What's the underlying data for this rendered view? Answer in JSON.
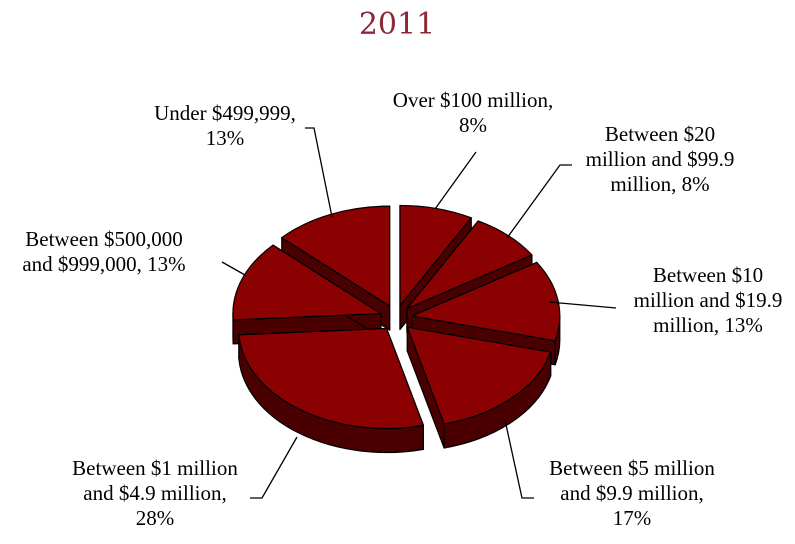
{
  "chart_data": {
    "type": "pie",
    "title": "2011",
    "style": "3d-exploded",
    "colors": {
      "top": "#8b0000",
      "side": "#4a0000",
      "title": "#8b2a35"
    },
    "slices": [
      {
        "label_lines": [
          "Over $100 million,",
          "8%"
        ],
        "value": 8
      },
      {
        "label_lines": [
          "Between $20",
          "million and $99.9",
          "million, 8%"
        ],
        "value": 8
      },
      {
        "label_lines": [
          "Between $10",
          "million and $19.9",
          "million, 13%"
        ],
        "value": 13
      },
      {
        "label_lines": [
          "Between $5 million",
          "and $9.9 million,",
          "17%"
        ],
        "value": 17
      },
      {
        "label_lines": [
          "Between $1 million",
          "and $4.9 million,",
          "28%"
        ],
        "value": 28
      },
      {
        "label_lines": [
          "Between $500,000",
          "and $999,000, 13%"
        ],
        "value": 13
      },
      {
        "label_lines": [
          "Under $499,999,",
          "13%"
        ],
        "value": 13
      }
    ]
  }
}
